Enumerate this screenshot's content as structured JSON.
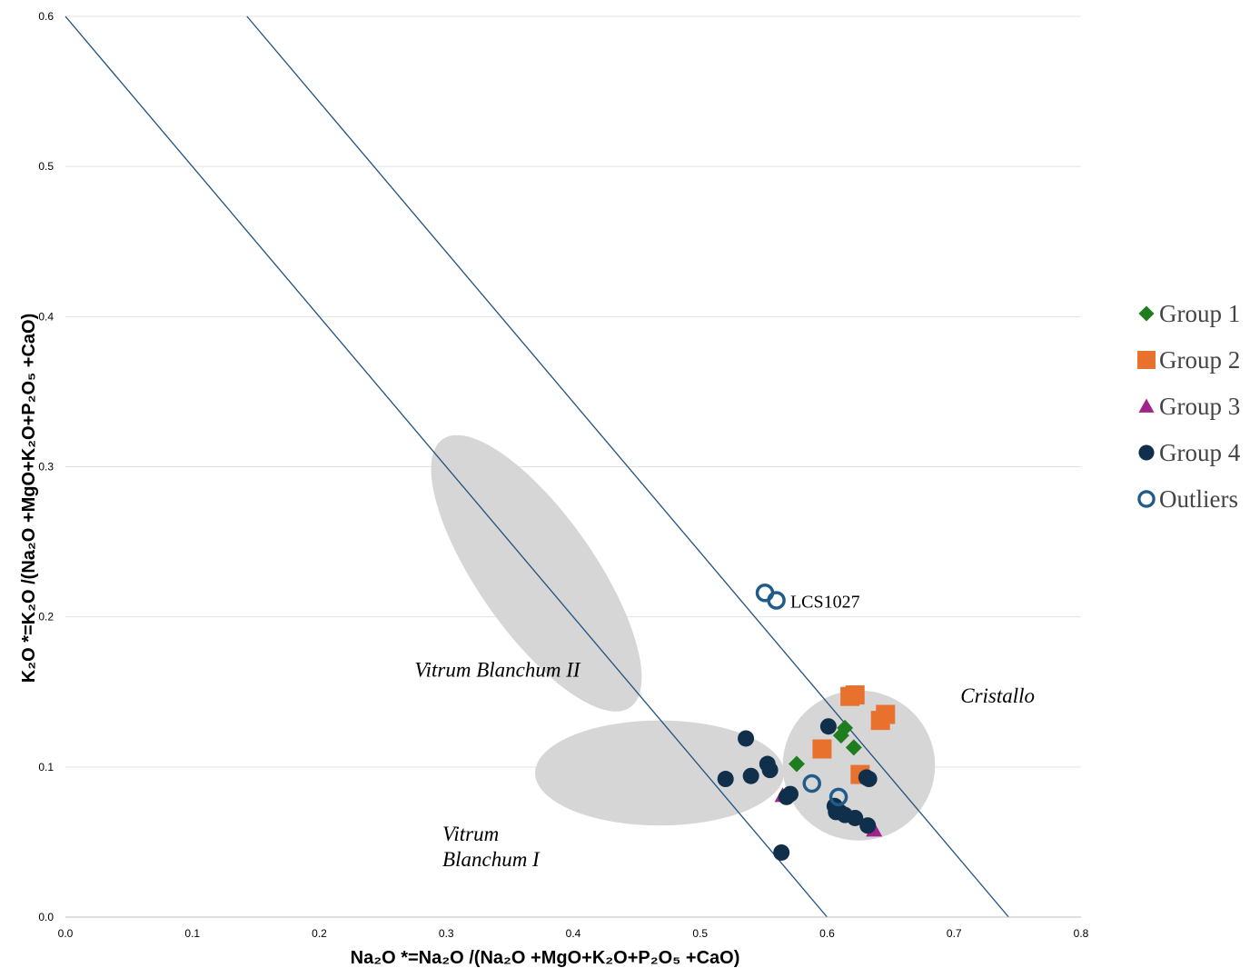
{
  "chart_data": {
    "type": "scatter",
    "xlabel": "Na₂O *=Na₂O /(Na₂O +MgO+K₂O+P₂O₅ +CaO)",
    "ylabel": "K₂O *=K₂O /(Na₂O +MgO+K₂O+P₂O₅ +CaO)",
    "xlim": [
      0,
      0.8
    ],
    "ylim": [
      0,
      0.6
    ],
    "x_ticks": [
      "0.0",
      "0.1",
      "0.2",
      "0.3",
      "0.4",
      "0.5",
      "0.6",
      "0.7",
      "0.8"
    ],
    "y_ticks": [
      "0.0",
      "0.1",
      "0.2",
      "0.3",
      "0.4",
      "0.5",
      "0.6"
    ],
    "grid": "horizontal",
    "legend_position": "right",
    "series": [
      {
        "name": "Group 1",
        "marker": "diamond",
        "color": "#1e7d1e",
        "points": [
          [
            0.576,
            0.102
          ],
          [
            0.611,
            0.121
          ],
          [
            0.614,
            0.126
          ],
          [
            0.621,
            0.113
          ]
        ]
      },
      {
        "name": "Group 2",
        "marker": "square",
        "color": "#e8712e",
        "points": [
          [
            0.596,
            0.112
          ],
          [
            0.618,
            0.147
          ],
          [
            0.622,
            0.148
          ],
          [
            0.626,
            0.095
          ],
          [
            0.642,
            0.131
          ],
          [
            0.646,
            0.135
          ]
        ]
      },
      {
        "name": "Group 3",
        "marker": "triangle",
        "color": "#a0258a",
        "points": [
          [
            0.565,
            0.081
          ],
          [
            0.637,
            0.058
          ]
        ]
      },
      {
        "name": "Group 4",
        "marker": "circle",
        "color": "#0f2f4b",
        "points": [
          [
            0.52,
            0.092
          ],
          [
            0.536,
            0.119
          ],
          [
            0.54,
            0.094
          ],
          [
            0.553,
            0.102
          ],
          [
            0.555,
            0.098
          ],
          [
            0.564,
            0.043
          ],
          [
            0.568,
            0.08
          ],
          [
            0.571,
            0.082
          ],
          [
            0.601,
            0.127
          ],
          [
            0.606,
            0.074
          ],
          [
            0.607,
            0.07
          ],
          [
            0.61,
            0.07
          ],
          [
            0.614,
            0.068
          ],
          [
            0.622,
            0.066
          ],
          [
            0.631,
            0.093
          ],
          [
            0.632,
            0.061
          ],
          [
            0.633,
            0.092
          ]
        ]
      },
      {
        "name": "Outliers",
        "marker": "open-circle",
        "color": "#1f5c8b",
        "points": [
          [
            0.551,
            0.216
          ],
          [
            0.56,
            0.211
          ],
          [
            0.588,
            0.089
          ],
          [
            0.609,
            0.08
          ]
        ]
      }
    ],
    "reference_lines": [
      {
        "from": [
          0.0,
          0.6
        ],
        "to": [
          0.6,
          0.0
        ],
        "color": "#1f5080"
      },
      {
        "from": [
          0.143,
          0.6
        ],
        "to": [
          0.743,
          0.0
        ],
        "color": "#1f5080"
      }
    ],
    "regions": [
      {
        "name": "Vitrum Blanchum II",
        "shape": "ellipse",
        "center": [
          0.371,
          0.229
        ],
        "semi_axes_data": [
          0.046,
          0.109
        ],
        "rotation": -35,
        "color": "#d6d6d6"
      },
      {
        "name": "Vitrum Blanchum I",
        "shape": "ellipse",
        "center": [
          0.468,
          0.096
        ],
        "semi_axes_data": [
          0.098,
          0.035
        ],
        "rotation": 0,
        "color": "#d6d6d6"
      },
      {
        "name": "Cristallo",
        "shape": "ellipse",
        "center": [
          0.625,
          0.101
        ],
        "semi_axes_data": [
          0.06,
          0.05
        ],
        "rotation": 0,
        "color": "#d6d6d6"
      }
    ],
    "region_labels": [
      {
        "lines": [
          "Vitrum Blanchum II"
        ],
        "at": [
          0.275,
          0.16
        ]
      },
      {
        "lines": [
          "Vitrum",
          "Blanchum I"
        ],
        "at": [
          0.297,
          0.051
        ]
      },
      {
        "lines": [
          "Cristallo"
        ],
        "at": [
          0.705,
          0.143
        ]
      }
    ],
    "annotations": [
      {
        "text": "LCS1027",
        "at": [
          0.571,
          0.209
        ]
      }
    ]
  }
}
